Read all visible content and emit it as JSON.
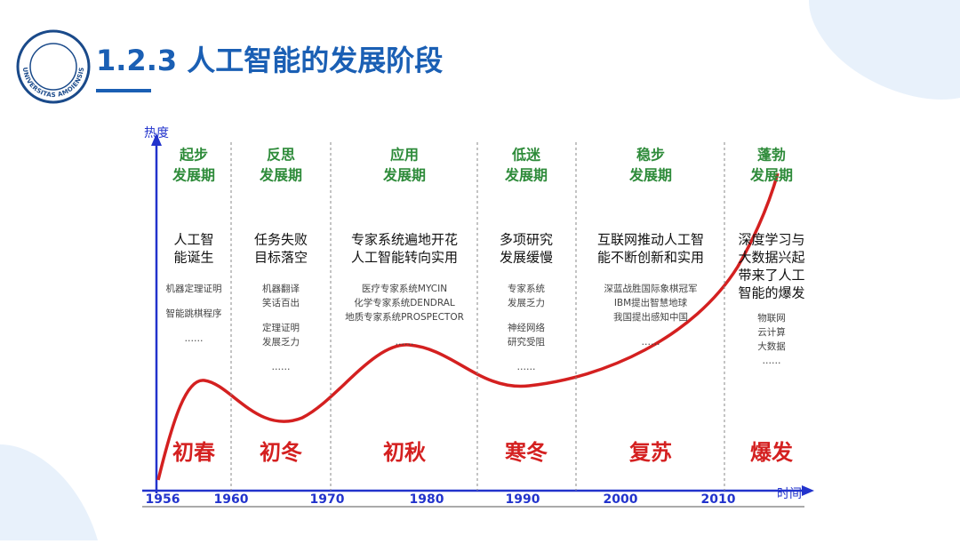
{
  "header": {
    "title": "1.2.3 人工智能的发展阶段",
    "logo_text": "UNIVERSITAS AMOIENSIS"
  },
  "axes": {
    "y_label": "热度",
    "x_label": "时间",
    "years": [
      "1956",
      "1960",
      "1970",
      "1980",
      "1990",
      "2000",
      "2010"
    ]
  },
  "phases": [
    {
      "name": [
        "起步",
        "发展期"
      ],
      "description": [
        "人工智",
        "能诞生"
      ],
      "examples": [
        [
          "机器定理证明"
        ],
        [
          "智能跳棋程序"
        ],
        [
          "……"
        ]
      ],
      "season": "初春"
    },
    {
      "name": [
        "反思",
        "发展期"
      ],
      "description": [
        "任务失败",
        "目标落空"
      ],
      "examples": [
        [
          "机器翻译",
          "笑话百出"
        ],
        [
          "定理证明",
          "发展乏力"
        ],
        [
          "……"
        ]
      ],
      "season": "初冬"
    },
    {
      "name": [
        "应用",
        "发展期"
      ],
      "description": [
        "专家系统遍地开花",
        "人工智能转向实用"
      ],
      "examples": [
        [
          "医疗专家系统MYCIN",
          "化学专家系统DENDRAL",
          "地质专家系统PROSPECTOR"
        ],
        [
          "……"
        ]
      ],
      "season": "初秋"
    },
    {
      "name": [
        "低迷",
        "发展期"
      ],
      "description": [
        "多项研究",
        "发展缓慢"
      ],
      "examples": [
        [
          "专家系统",
          "发展乏力"
        ],
        [
          "神经网络",
          "研究受阻"
        ],
        [
          "……"
        ]
      ],
      "season": "寒冬"
    },
    {
      "name": [
        "稳步",
        "发展期"
      ],
      "description": [
        "互联网推动人工智",
        "能不断创新和实用"
      ],
      "examples": [
        [
          "深蓝战胜国际象棋冠军",
          "IBM提出智慧地球",
          "我国提出感知中国"
        ],
        [
          "……"
        ]
      ],
      "season": "复苏"
    },
    {
      "name": [
        "蓬勃",
        "发展期"
      ],
      "description": [
        "深度学习与",
        "大数据兴起",
        "带来了人工",
        "智能的爆发"
      ],
      "examples": [
        [
          "物联网",
          "云计算",
          "大数据",
          "……"
        ]
      ],
      "season": "爆发"
    }
  ]
}
